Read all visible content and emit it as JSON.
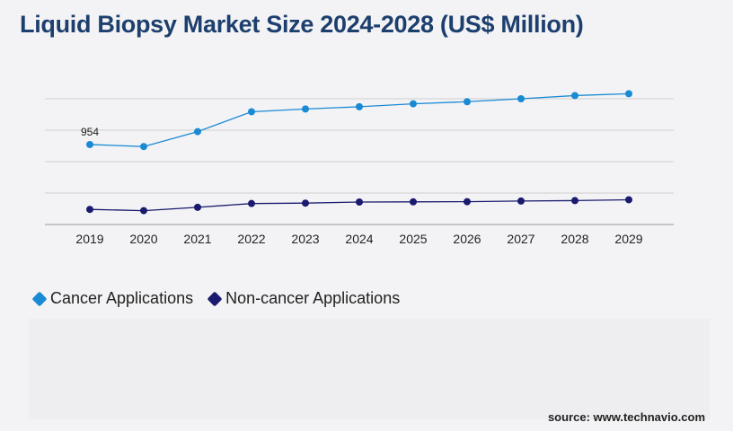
{
  "title": "Liquid Biopsy Market Size 2024-2028 (US$ Million)",
  "source": "source: www.technavio.com",
  "chart_data": {
    "type": "line",
    "title": "Liquid Biopsy Market Size 2024-2028 (US$ Million)",
    "categories": [
      "2019",
      "2020",
      "2021",
      "2022",
      "2023",
      "2024",
      "2025",
      "2026",
      "2027",
      "2028",
      "2029"
    ],
    "ylim": [
      0,
      1500
    ],
    "grid": true,
    "legend_position": "bottom-left",
    "series": [
      {
        "name": "Cancer Applications",
        "color": "#1a8ad4",
        "values": [
          954,
          930,
          1108,
          1345,
          1378,
          1405,
          1440,
          1465,
          1500,
          1538,
          1560
        ]
      },
      {
        "name": "Non-cancer Applications",
        "color": "#1a1a6e",
        "values": [
          180,
          165,
          205,
          250,
          255,
          268,
          270,
          272,
          280,
          285,
          295
        ]
      }
    ],
    "data_labels": [
      {
        "series": 0,
        "index": 0,
        "text": "954"
      }
    ]
  }
}
